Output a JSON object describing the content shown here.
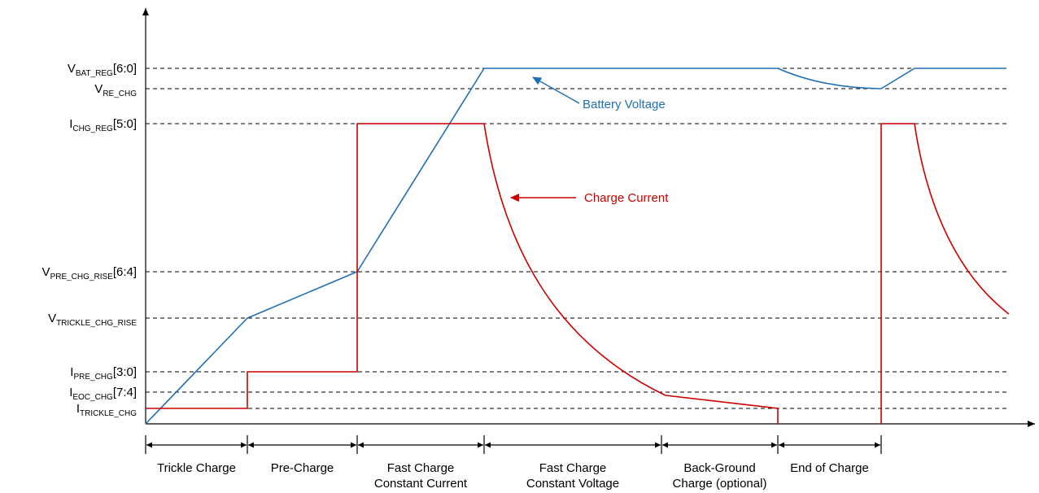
{
  "levels": [
    {
      "key": "vbat_reg",
      "main": "V",
      "sub": "BAT_REG",
      "suffix": "[6:0]"
    },
    {
      "key": "vre_chg",
      "main": "V",
      "sub": "RE_CHG",
      "suffix": ""
    },
    {
      "key": "ichg_reg",
      "main": "I",
      "sub": "CHG_REG",
      "suffix": "[5:0]"
    },
    {
      "key": "vpre_chg_rise",
      "main": "V",
      "sub": "PRE_CHG_RISE",
      "suffix": "[6:4]"
    },
    {
      "key": "vtrickle_chg_rise",
      "main": "V",
      "sub": "TRICKLE_CHG_RISE",
      "suffix": ""
    },
    {
      "key": "ipre_chg",
      "main": "I",
      "sub": "PRE_CHG",
      "suffix": "[3:0]"
    },
    {
      "key": "ieoc_chg",
      "main": "I",
      "sub": "EOC_CHG",
      "suffix": "[7:4]"
    },
    {
      "key": "itrickle_chg",
      "main": "I",
      "sub": "TRICKLE_CHG",
      "suffix": ""
    }
  ],
  "annotations": {
    "battery_voltage": "Battery Voltage",
    "charge_current": "Charge Current"
  },
  "phases": [
    {
      "lines": [
        "Trickle Charge"
      ]
    },
    {
      "lines": [
        "Pre-Charge"
      ]
    },
    {
      "lines": [
        "Fast Charge",
        "Constant Current"
      ]
    },
    {
      "lines": [
        "Fast Charge",
        "Constant Voltage"
      ]
    },
    {
      "lines": [
        "Back-Ground",
        "Charge (optional)"
      ]
    },
    {
      "lines": [
        "End of Charge"
      ]
    }
  ],
  "colors": {
    "voltage": "#1f6fb5",
    "current": "#cc0000",
    "axis": "#000000",
    "dashed": "#000000"
  }
}
